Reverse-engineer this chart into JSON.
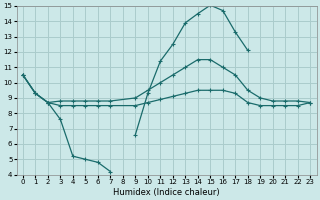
{
  "xlabel": "Humidex (Indice chaleur)",
  "xlim": [
    -0.5,
    23.5
  ],
  "ylim": [
    4,
    15
  ],
  "xticks": [
    0,
    1,
    2,
    3,
    4,
    5,
    6,
    7,
    8,
    9,
    10,
    11,
    12,
    13,
    14,
    15,
    16,
    17,
    18,
    19,
    20,
    21,
    22,
    23
  ],
  "yticks": [
    4,
    5,
    6,
    7,
    8,
    9,
    10,
    11,
    12,
    13,
    14,
    15
  ],
  "bg_color": "#cce8e8",
  "grid_color": "#aacccc",
  "line_color": "#1a6b6b",
  "curve1_x": [
    0,
    1,
    2,
    3,
    4,
    5,
    6,
    7
  ],
  "curve1_y": [
    10.5,
    9.3,
    8.7,
    7.6,
    5.2,
    5.0,
    4.8,
    4.2
  ],
  "curve1b_x": [
    9,
    10,
    11,
    12,
    13,
    14,
    15,
    16,
    17,
    18
  ],
  "curve1b_y": [
    6.6,
    9.3,
    11.4,
    12.5,
    13.9,
    14.5,
    15.05,
    14.7,
    13.3,
    12.1
  ],
  "curve2_x": [
    0,
    1,
    2,
    3,
    4,
    5,
    6,
    7,
    9,
    10,
    11,
    12,
    13,
    14,
    15,
    16,
    17,
    18,
    19,
    20,
    21,
    22,
    23
  ],
  "curve2_y": [
    10.5,
    9.3,
    8.7,
    8.8,
    8.8,
    8.8,
    8.8,
    8.8,
    9.0,
    9.5,
    10.0,
    10.5,
    11.0,
    11.5,
    11.5,
    11.0,
    10.5,
    9.5,
    9.0,
    8.8,
    8.8,
    8.8,
    8.7
  ],
  "curve3_x": [
    0,
    1,
    2,
    3,
    4,
    5,
    6,
    7,
    9,
    10,
    11,
    12,
    13,
    14,
    15,
    16,
    17,
    18,
    19,
    20,
    21,
    22,
    23
  ],
  "curve3_y": [
    10.5,
    9.3,
    8.7,
    8.5,
    8.5,
    8.5,
    8.5,
    8.5,
    8.5,
    8.7,
    8.9,
    9.1,
    9.3,
    9.5,
    9.5,
    9.5,
    9.3,
    8.7,
    8.5,
    8.5,
    8.5,
    8.5,
    8.7
  ]
}
